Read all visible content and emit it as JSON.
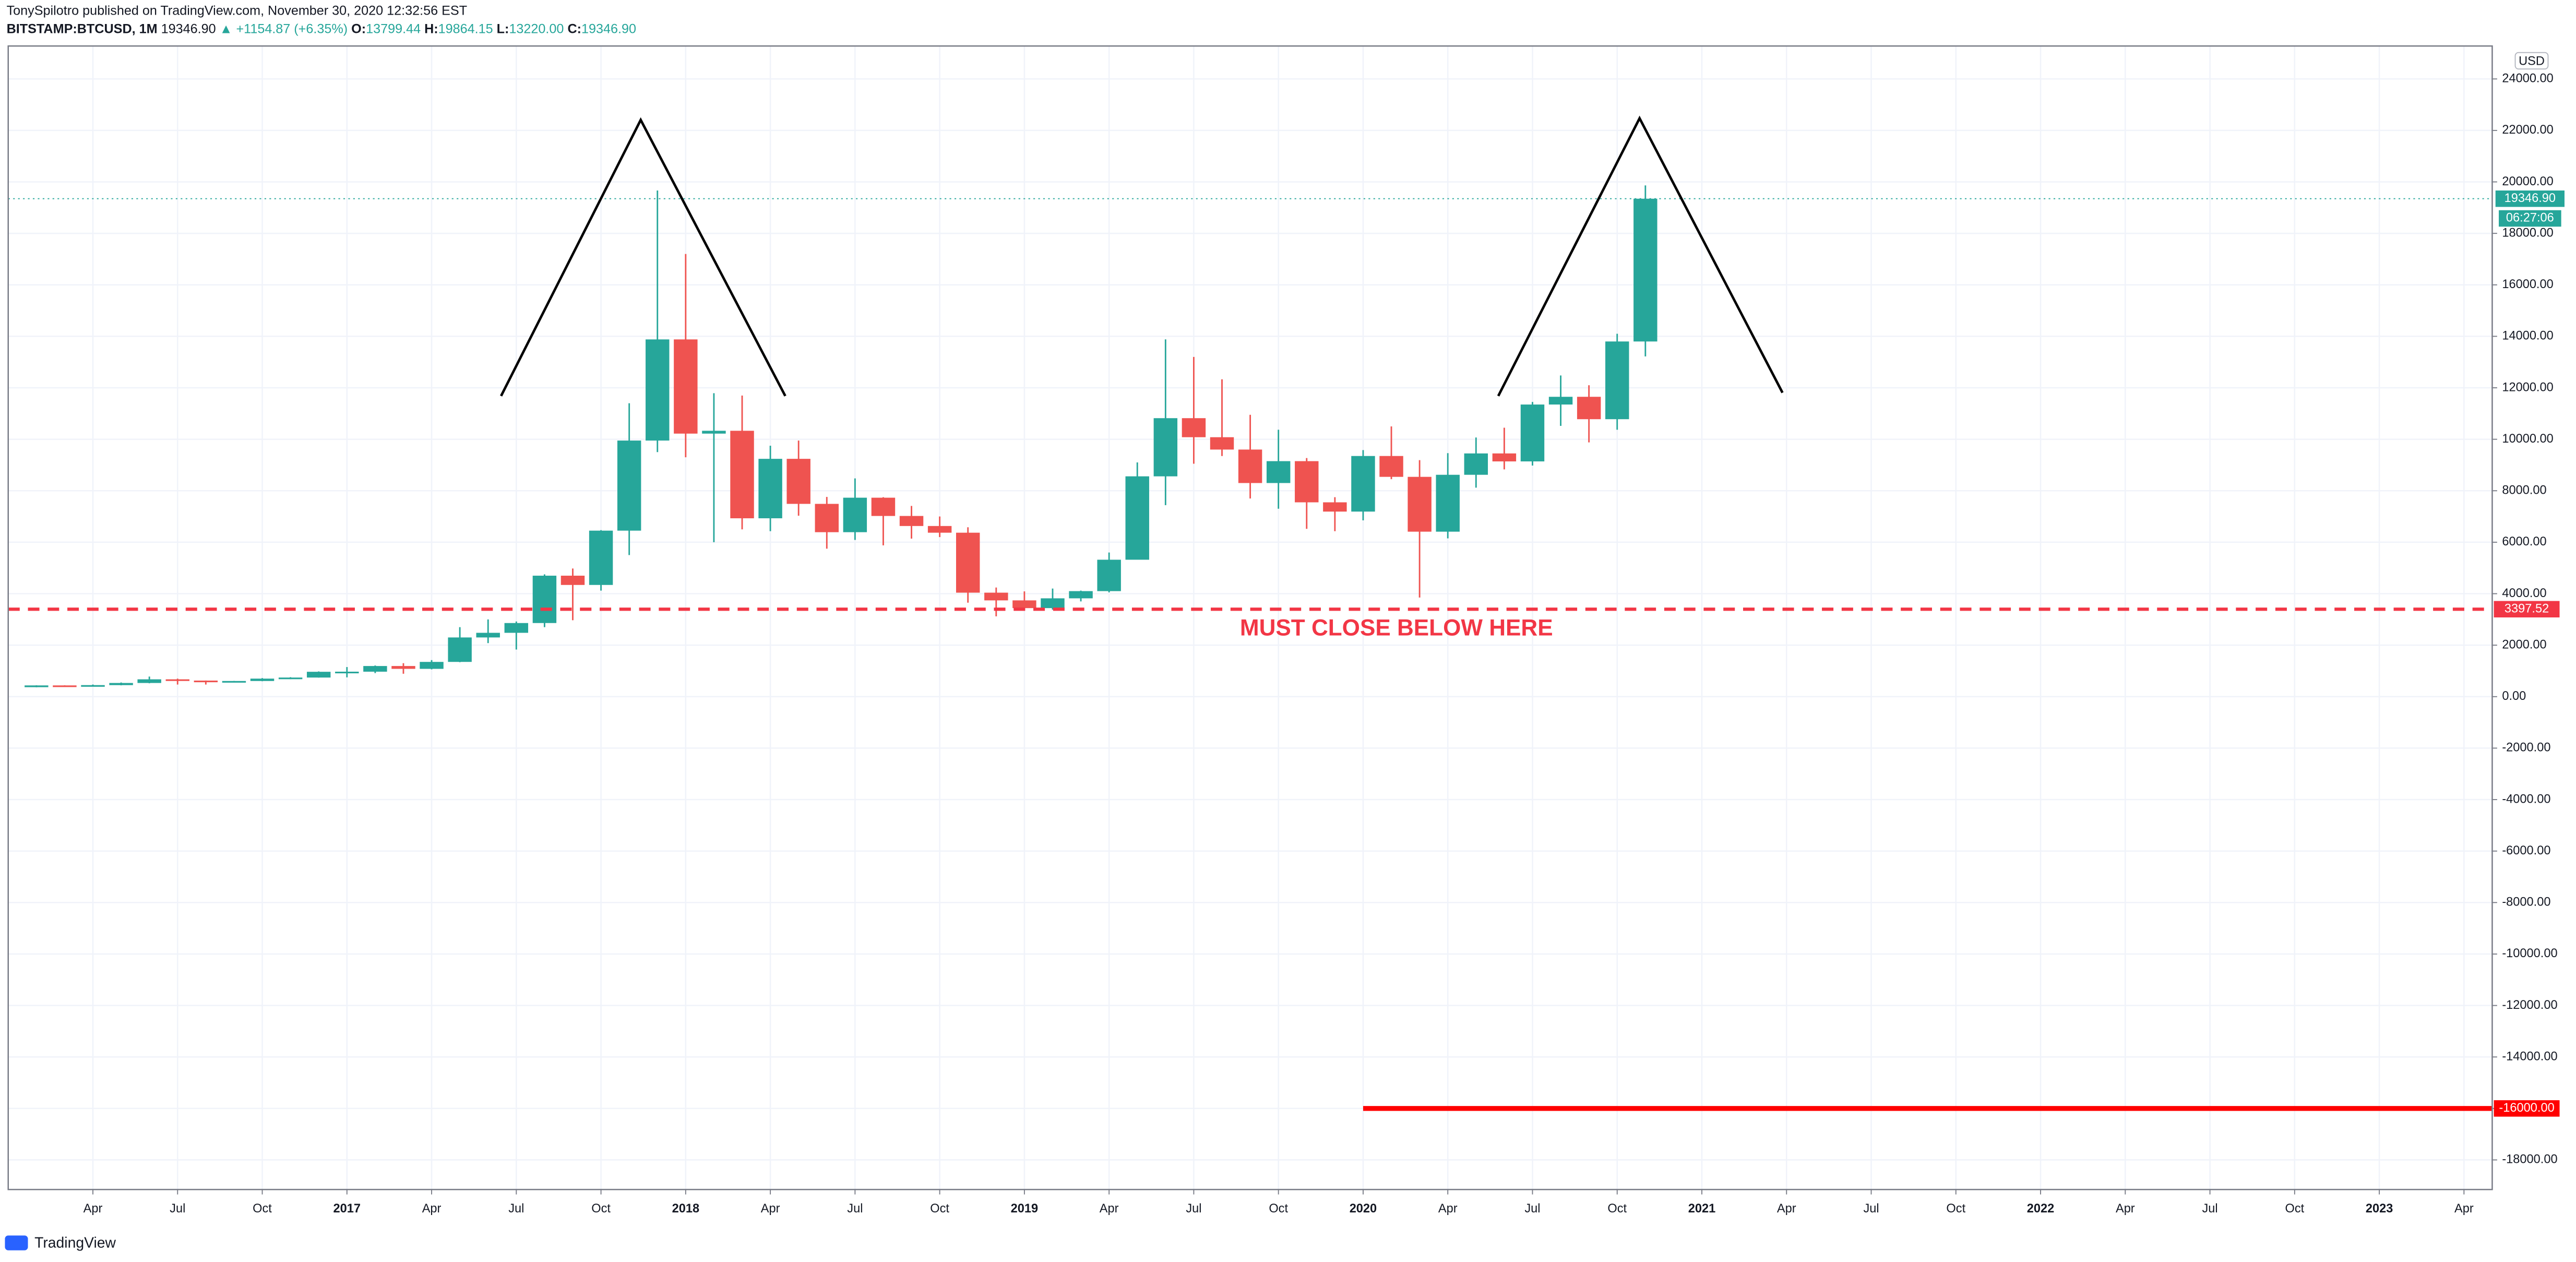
{
  "header": {
    "publisher": "TonySpilotro published on TradingView.com, November 30, 2020 12:32:56 EST"
  },
  "legend": {
    "symbol": "BITSTAMP:BTCUSD, 1M",
    "last": "19346.90",
    "change": "▲ +1154.87 (+6.35%)",
    "items": [
      {
        "key": "O:",
        "value": "13799.44"
      },
      {
        "key": "H:",
        "value": "19864.15"
      },
      {
        "key": "L:",
        "value": "13220.00"
      },
      {
        "key": "C:",
        "value": "19346.90"
      }
    ]
  },
  "chart_data": {
    "type": "candlestick",
    "currency": "USD",
    "up_color": "#26a69a",
    "down_color": "#ef5350",
    "x": [
      "2016-02",
      "2016-03",
      "2016-04",
      "2016-05",
      "2016-06",
      "2016-07",
      "2016-08",
      "2016-09",
      "2016-10",
      "2016-11",
      "2016-12",
      "2017-01",
      "2017-02",
      "2017-03",
      "2017-04",
      "2017-05",
      "2017-06",
      "2017-07",
      "2017-08",
      "2017-09",
      "2017-10",
      "2017-11",
      "2017-12",
      "2018-01",
      "2018-02",
      "2018-03",
      "2018-04",
      "2018-05",
      "2018-06",
      "2018-07",
      "2018-08",
      "2018-09",
      "2018-10",
      "2018-11",
      "2018-12",
      "2019-01",
      "2019-02",
      "2019-03",
      "2019-04",
      "2019-05",
      "2019-06",
      "2019-07",
      "2019-08",
      "2019-09",
      "2019-10",
      "2019-11",
      "2019-12",
      "2020-01",
      "2020-02",
      "2020-03",
      "2020-04",
      "2020-05",
      "2020-06",
      "2020-07",
      "2020-08",
      "2020-09",
      "2020-10",
      "2020-11"
    ],
    "open": [
      368,
      436,
      416,
      448,
      531,
      673,
      624,
      575,
      608,
      700,
      742,
      966,
      970,
      1190,
      1080,
      1350,
      2300,
      2480,
      2860,
      4700,
      4340,
      6450,
      9950,
      13880,
      10220,
      10330,
      6930,
      9240,
      7490,
      6390,
      7730,
      7020,
      6630,
      6370,
      4040,
      3740,
      3440,
      3820,
      4100,
      5320,
      8560,
      10820,
      10080,
      9600,
      8300,
      9150,
      7550,
      7190,
      9350,
      8540,
      6410,
      8620,
      9450,
      9140,
      11350,
      11650,
      10780,
      13799.44
    ],
    "high": [
      440,
      440,
      470,
      550,
      780,
      700,
      627,
      610,
      720,
      755,
      980,
      1150,
      1210,
      1300,
      1420,
      2700,
      3000,
      2920,
      4750,
      4980,
      6470,
      11400,
      19666,
      17200,
      11790,
      11700,
      9750,
      9950,
      7760,
      8480,
      7750,
      7410,
      7000,
      6580,
      4240,
      4090,
      4200,
      4120,
      5600,
      9100,
      13880,
      13200,
      12330,
      10950,
      10370,
      9270,
      7750,
      9580,
      10500,
      9190,
      9460,
      10070,
      10450,
      11450,
      12480,
      12100,
      14100,
      19864.15
    ],
    "low": [
      365,
      390,
      412,
      440,
      520,
      470,
      470,
      570,
      600,
      680,
      740,
      750,
      915,
      890,
      1060,
      1340,
      2080,
      1830,
      2700,
      2970,
      4120,
      5500,
      9500,
      9300,
      6000,
      6500,
      6430,
      7030,
      5750,
      6090,
      5880,
      6140,
      6200,
      3650,
      3120,
      3350,
      3380,
      3700,
      4050,
      5330,
      7440,
      9050,
      9350,
      7700,
      7300,
      6520,
      6430,
      6850,
      8450,
      3850,
      6150,
      8120,
      8830,
      8980,
      10520,
      9880,
      10370,
      13220
    ],
    "close": [
      436,
      416,
      448,
      531,
      673,
      624,
      575,
      608,
      700,
      742,
      966,
      970,
      1190,
      1080,
      1350,
      2300,
      2480,
      2860,
      4700,
      4340,
      6450,
      9950,
      13880,
      10220,
      10330,
      6930,
      9240,
      7490,
      6390,
      7730,
      7020,
      6630,
      6370,
      4040,
      3740,
      3440,
      3820,
      4100,
      5320,
      8560,
      10820,
      10080,
      9600,
      8300,
      9150,
      7550,
      7190,
      9350,
      8540,
      6410,
      8620,
      9450,
      9140,
      11350,
      11650,
      10780,
      13800,
      19346.9
    ],
    "xlim": [
      "2016-01",
      "2023-05"
    ],
    "xticks": [
      {
        "value": "2016-04",
        "label": "Apr"
      },
      {
        "value": "2016-07",
        "label": "Jul"
      },
      {
        "value": "2016-10",
        "label": "Oct"
      },
      {
        "value": "2017-01",
        "label": "2017"
      },
      {
        "value": "2017-04",
        "label": "Apr"
      },
      {
        "value": "2017-07",
        "label": "Jul"
      },
      {
        "value": "2017-10",
        "label": "Oct"
      },
      {
        "value": "2018-01",
        "label": "2018"
      },
      {
        "value": "2018-04",
        "label": "Apr"
      },
      {
        "value": "2018-07",
        "label": "Jul"
      },
      {
        "value": "2018-10",
        "label": "Oct"
      },
      {
        "value": "2019-01",
        "label": "2019"
      },
      {
        "value": "2019-04",
        "label": "Apr"
      },
      {
        "value": "2019-07",
        "label": "Jul"
      },
      {
        "value": "2019-10",
        "label": "Oct"
      },
      {
        "value": "2020-01",
        "label": "2020"
      },
      {
        "value": "2020-04",
        "label": "Apr"
      },
      {
        "value": "2020-07",
        "label": "Jul"
      },
      {
        "value": "2020-10",
        "label": "Oct"
      },
      {
        "value": "2021-01",
        "label": "2021"
      },
      {
        "value": "2021-04",
        "label": "Apr"
      },
      {
        "value": "2021-07",
        "label": "Jul"
      },
      {
        "value": "2021-10",
        "label": "Oct"
      },
      {
        "value": "2022-01",
        "label": "2022"
      },
      {
        "value": "2022-04",
        "label": "Apr"
      },
      {
        "value": "2022-07",
        "label": "Jul"
      },
      {
        "value": "2022-10",
        "label": "Oct"
      },
      {
        "value": "2023-01",
        "label": "2023"
      },
      {
        "value": "2023-04",
        "label": "Apr"
      }
    ],
    "ylim": [
      -19150,
      25280
    ],
    "yticks": [
      {
        "value": 24000,
        "label": "24000.00"
      },
      {
        "value": 22000,
        "label": "22000.00"
      },
      {
        "value": 20000,
        "label": "20000.00"
      },
      {
        "value": 18000,
        "label": "18000.00"
      },
      {
        "value": 16000,
        "label": "16000.00"
      },
      {
        "value": 14000,
        "label": "14000.00"
      },
      {
        "value": 12000,
        "label": "12000.00"
      },
      {
        "value": 10000,
        "label": "10000.00"
      },
      {
        "value": 8000,
        "label": "8000.00"
      },
      {
        "value": 6000,
        "label": "6000.00"
      },
      {
        "value": 4000,
        "label": "4000.00"
      },
      {
        "value": 2000,
        "label": "2000.00"
      },
      {
        "value": 0,
        "label": "0.00"
      },
      {
        "value": -2000,
        "label": "-2000.00"
      },
      {
        "value": -4000,
        "label": "-4000.00"
      },
      {
        "value": -6000,
        "label": "-6000.00"
      },
      {
        "value": -8000,
        "label": "-8000.00"
      },
      {
        "value": -10000,
        "label": "-10000.00"
      },
      {
        "value": -12000,
        "label": "-12000.00"
      },
      {
        "value": -14000,
        "label": "-14000.00"
      },
      {
        "value": -16000,
        "label": "-16000.00"
      },
      {
        "value": -18000,
        "label": "-18000.00"
      }
    ],
    "grid": true,
    "last_price": {
      "value": 19346.9,
      "label": "19346.90",
      "countdown": "06:27:06",
      "color": "#26a69a"
    },
    "hlines": [
      {
        "value": 3397.52,
        "color": "#f23645",
        "style": "dashed"
      },
      {
        "value": -16000,
        "label": "-16000.00",
        "color": "#ff0000",
        "style": "solid",
        "start": "2020-01"
      }
    ],
    "annotation": {
      "text": "MUST CLOSE BELOW HERE",
      "color": "#f23645"
    },
    "watermark": "TradingView"
  }
}
